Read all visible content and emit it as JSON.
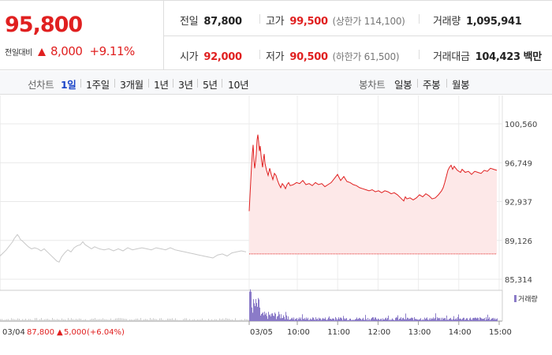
{
  "header": {
    "price": "95,800",
    "change_label": "전일대비",
    "change_amount": "8,000",
    "change_pct": "+9.11%",
    "stats": {
      "prev_close": {
        "label": "전일",
        "value": "87,800"
      },
      "open": {
        "label": "시가",
        "value": "92,000"
      },
      "high": {
        "label": "고가",
        "value": "99,500",
        "sub": "(상한가 114,100)"
      },
      "low": {
        "label": "저가",
        "value": "90,500",
        "sub": "(하한가 61,500)"
      },
      "volume": {
        "label": "거래량",
        "value": "1,095,941"
      },
      "turnover": {
        "label": "거래대금",
        "value": "104,423",
        "unit": "백만"
      }
    }
  },
  "nav": {
    "line_chart_label": "선차트",
    "ranges": [
      "1일",
      "1주일",
      "3개월",
      "1년",
      "3년",
      "5년",
      "10년"
    ],
    "active_range": "1일",
    "candle_chart_label": "봉차트",
    "candles": [
      "일봉",
      "주봉",
      "월봉"
    ]
  },
  "colors": {
    "up": "#e02020",
    "active_tab": "#1a44c8",
    "prev_day_line": "#c8c8c8",
    "area_fill": "#fde8e8",
    "volume_bar": "#8b7bc8"
  },
  "chart_data": {
    "type": "line",
    "y_ticks": [
      "100,560",
      "96,749",
      "92,937",
      "89,126",
      "85,314"
    ],
    "ylim": [
      85314,
      100560
    ],
    "x_labels": [
      "10:00",
      "11:00",
      "12:00",
      "13:00",
      "14:00",
      "15:00"
    ],
    "prev_day": {
      "date": "03/04",
      "close": "87,800",
      "change": "5,000",
      "change_pct": "(+6.04%)",
      "points": [
        [
          0,
          87600
        ],
        [
          4,
          87900
        ],
        [
          8,
          88200
        ],
        [
          11,
          88500
        ],
        [
          14,
          88800
        ],
        [
          16,
          89000
        ],
        [
          18,
          89300
        ],
        [
          20,
          89500
        ],
        [
          22,
          89700
        ],
        [
          24,
          89500
        ],
        [
          26,
          89200
        ],
        [
          28,
          89100
        ],
        [
          32,
          88800
        ],
        [
          36,
          88500
        ],
        [
          40,
          88300
        ],
        [
          44,
          88400
        ],
        [
          48,
          88300
        ],
        [
          52,
          88100
        ],
        [
          56,
          88300
        ],
        [
          60,
          88000
        ],
        [
          64,
          87700
        ],
        [
          68,
          87400
        ],
        [
          72,
          87100
        ],
        [
          75,
          87000
        ],
        [
          78,
          87500
        ],
        [
          82,
          87900
        ],
        [
          86,
          88200
        ],
        [
          90,
          88000
        ],
        [
          94,
          88400
        ],
        [
          98,
          88600
        ],
        [
          102,
          88700
        ],
        [
          105,
          89000
        ],
        [
          108,
          88700
        ],
        [
          112,
          88500
        ],
        [
          116,
          88300
        ],
        [
          120,
          88500
        ],
        [
          126,
          88300
        ],
        [
          132,
          88200
        ],
        [
          138,
          88300
        ],
        [
          144,
          88100
        ],
        [
          150,
          88300
        ],
        [
          156,
          88100
        ],
        [
          162,
          88400
        ],
        [
          168,
          88200
        ],
        [
          174,
          88300
        ],
        [
          180,
          88400
        ],
        [
          186,
          88300
        ],
        [
          192,
          88200
        ],
        [
          198,
          88400
        ],
        [
          204,
          88300
        ],
        [
          210,
          88200
        ],
        [
          216,
          88400
        ],
        [
          222,
          88200
        ],
        [
          228,
          88100
        ],
        [
          234,
          88000
        ],
        [
          240,
          87900
        ],
        [
          246,
          87800
        ],
        [
          252,
          87700
        ],
        [
          258,
          87600
        ],
        [
          264,
          87500
        ],
        [
          270,
          87400
        ],
        [
          276,
          87700
        ],
        [
          282,
          87800
        ],
        [
          288,
          87600
        ],
        [
          294,
          87900
        ],
        [
          300,
          88000
        ],
        [
          306,
          88100
        ],
        [
          312,
          88000
        ]
      ]
    },
    "today": {
      "date": "03/05",
      "base": 87800,
      "points": [
        [
          0,
          92000
        ],
        [
          1,
          93500
        ],
        [
          2,
          95000
        ],
        [
          3,
          96500
        ],
        [
          4,
          97700
        ],
        [
          5,
          98500
        ],
        [
          6,
          97000
        ],
        [
          7,
          96200
        ],
        [
          8,
          96800
        ],
        [
          9,
          97600
        ],
        [
          10,
          99000
        ],
        [
          11,
          99500
        ],
        [
          12,
          98800
        ],
        [
          13,
          97900
        ],
        [
          14,
          98400
        ],
        [
          15,
          97500
        ],
        [
          16,
          96800
        ],
        [
          17,
          96300
        ],
        [
          18,
          97100
        ],
        [
          19,
          97600
        ],
        [
          20,
          96700
        ],
        [
          22,
          96000
        ],
        [
          24,
          95500
        ],
        [
          26,
          96200
        ],
        [
          28,
          95600
        ],
        [
          30,
          95100
        ],
        [
          32,
          95700
        ],
        [
          34,
          95500
        ],
        [
          36,
          95000
        ],
        [
          38,
          94600
        ],
        [
          40,
          94300
        ],
        [
          42,
          94700
        ],
        [
          44,
          94500
        ],
        [
          46,
          94200
        ],
        [
          48,
          94600
        ],
        [
          50,
          94800
        ],
        [
          52,
          94500
        ],
        [
          56,
          94600
        ],
        [
          60,
          94800
        ],
        [
          64,
          94700
        ],
        [
          68,
          95000
        ],
        [
          72,
          94600
        ],
        [
          76,
          94700
        ],
        [
          80,
          94500
        ],
        [
          84,
          94800
        ],
        [
          88,
          94600
        ],
        [
          92,
          94700
        ],
        [
          96,
          94400
        ],
        [
          100,
          94600
        ],
        [
          104,
          94800
        ],
        [
          108,
          95200
        ],
        [
          112,
          95600
        ],
        [
          116,
          95000
        ],
        [
          120,
          95400
        ],
        [
          124,
          94900
        ],
        [
          128,
          94800
        ],
        [
          132,
          94600
        ],
        [
          136,
          94500
        ],
        [
          140,
          94300
        ],
        [
          144,
          94200
        ],
        [
          148,
          94100
        ],
        [
          152,
          94000
        ],
        [
          156,
          94100
        ],
        [
          160,
          93900
        ],
        [
          164,
          94000
        ],
        [
          168,
          93800
        ],
        [
          172,
          94000
        ],
        [
          176,
          93900
        ],
        [
          180,
          93700
        ],
        [
          184,
          93800
        ],
        [
          188,
          93600
        ],
        [
          192,
          93300
        ],
        [
          196,
          93000
        ],
        [
          198,
          93400
        ],
        [
          200,
          93200
        ],
        [
          204,
          93300
        ],
        [
          208,
          93100
        ],
        [
          212,
          93300
        ],
        [
          216,
          93600
        ],
        [
          220,
          93400
        ],
        [
          224,
          93700
        ],
        [
          228,
          93500
        ],
        [
          232,
          93200
        ],
        [
          236,
          93300
        ],
        [
          240,
          93600
        ],
        [
          244,
          94000
        ],
        [
          246,
          94300
        ],
        [
          248,
          94800
        ],
        [
          250,
          95400
        ],
        [
          252,
          96000
        ],
        [
          254,
          96300
        ],
        [
          256,
          96500
        ],
        [
          258,
          96100
        ],
        [
          260,
          96400
        ],
        [
          264,
          96000
        ],
        [
          268,
          95800
        ],
        [
          270,
          96100
        ],
        [
          274,
          95800
        ],
        [
          278,
          95900
        ],
        [
          282,
          95600
        ],
        [
          286,
          95900
        ],
        [
          290,
          95800
        ],
        [
          294,
          95700
        ],
        [
          298,
          96000
        ],
        [
          302,
          95900
        ],
        [
          306,
          96200
        ],
        [
          310,
          96100
        ],
        [
          314,
          96000
        ]
      ]
    },
    "legend": "거래량",
    "volume_label": "거래량"
  }
}
